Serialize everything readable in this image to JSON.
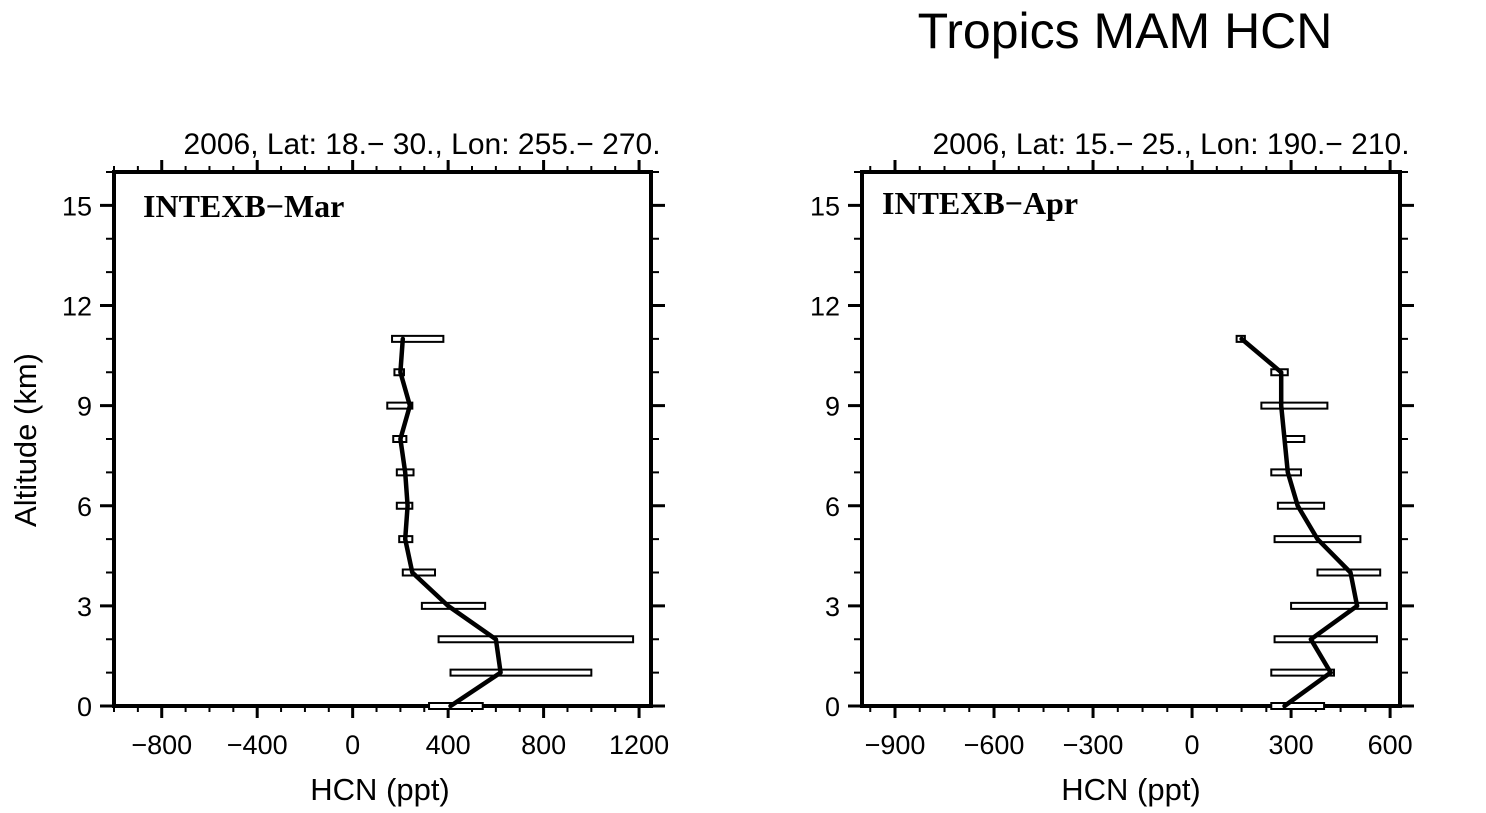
{
  "title": "Tropics MAM HCN",
  "chart_data": [
    {
      "type": "line",
      "panel_label": "INTEXB−Mar",
      "top_label": "2006, Lat: 18.− 30., Lon: 255.− 270.",
      "xlabel": "HCN (ppt)",
      "ylabel": "Altitude (km)",
      "xlim": [
        -1000,
        1250
      ],
      "ylim": [
        0,
        16
      ],
      "xticks": [
        -800,
        -400,
        0,
        400,
        800,
        1200
      ],
      "xtick_labels": [
        "−800",
        "−400",
        "0",
        "400",
        "800",
        "1200"
      ],
      "yticks": [
        0,
        3,
        6,
        9,
        12,
        15
      ],
      "ytick_labels": [
        "0",
        "3",
        "6",
        "9",
        "12",
        "15"
      ],
      "altitude": [
        0,
        1,
        2,
        3,
        4,
        5,
        6,
        7,
        8,
        9,
        10,
        11
      ],
      "mean": [
        410,
        620,
        600,
        400,
        250,
        220,
        230,
        220,
        200,
        240,
        200,
        210
      ],
      "range_low": [
        320,
        410,
        360,
        290,
        210,
        195,
        185,
        185,
        170,
        145,
        175,
        165
      ],
      "range_high": [
        545,
        1000,
        1175,
        555,
        345,
        250,
        250,
        255,
        225,
        250,
        215,
        380
      ]
    },
    {
      "type": "line",
      "panel_label": "INTEXB−Apr",
      "top_label": "2006, Lat: 15.− 25., Lon: 190.− 210.",
      "xlabel": "HCN (ppt)",
      "ylabel": "",
      "xlim": [
        -1000,
        630
      ],
      "ylim": [
        0,
        16
      ],
      "xticks": [
        -900,
        -600,
        -300,
        0,
        300,
        600
      ],
      "xtick_labels": [
        "−900",
        "−600",
        "−300",
        "0",
        "300",
        "600"
      ],
      "yticks": [
        0,
        3,
        6,
        9,
        12,
        15
      ],
      "ytick_labels": [
        "0",
        "3",
        "6",
        "9",
        "12",
        "15"
      ],
      "altitude": [
        0,
        1,
        2,
        3,
        4,
        5,
        6,
        7,
        8,
        9,
        10,
        11
      ],
      "mean": [
        280,
        420,
        360,
        500,
        480,
        380,
        320,
        290,
        280,
        270,
        270,
        150
      ],
      "range_low": [
        240,
        240,
        250,
        300,
        380,
        250,
        260,
        240,
        280,
        210,
        240,
        135
      ],
      "range_high": [
        400,
        430,
        560,
        590,
        570,
        510,
        400,
        330,
        340,
        410,
        290,
        160
      ]
    }
  ]
}
